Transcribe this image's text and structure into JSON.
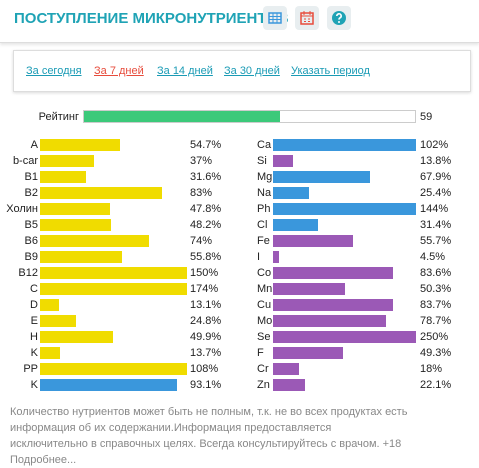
{
  "header": {
    "title": "ПОСТУПЛЕНИЕ МИКРОНУТРИЕНТОВ"
  },
  "tabs": [
    "За сегодня",
    "За 7 дней",
    "За 14 дней",
    "За 30 дней",
    "Указать период"
  ],
  "rating": {
    "label": "Рейтинг",
    "value": 59,
    "color": "#3cc97a"
  },
  "left": [
    {
      "name": "A",
      "value": 54.7,
      "label": "54.7%",
      "color": "#f0dc00"
    },
    {
      "name": "b-car",
      "value": 37,
      "label": "37%",
      "color": "#f0dc00"
    },
    {
      "name": "B1",
      "value": 31.6,
      "label": "31.6%",
      "color": "#f0dc00"
    },
    {
      "name": "B2",
      "value": 83,
      "label": "83%",
      "color": "#f0dc00"
    },
    {
      "name": "Холин",
      "value": 47.8,
      "label": "47.8%",
      "color": "#f0dc00"
    },
    {
      "name": "B5",
      "value": 48.2,
      "label": "48.2%",
      "color": "#f0dc00"
    },
    {
      "name": "B6",
      "value": 74,
      "label": "74%",
      "color": "#f0dc00"
    },
    {
      "name": "B9",
      "value": 55.8,
      "label": "55.8%",
      "color": "#f0dc00"
    },
    {
      "name": "B12",
      "value": 150,
      "label": "150%",
      "color": "#f0dc00"
    },
    {
      "name": "C",
      "value": 174,
      "label": "174%",
      "color": "#f0dc00"
    },
    {
      "name": "D",
      "value": 13.1,
      "label": "13.1%",
      "color": "#f0dc00"
    },
    {
      "name": "E",
      "value": 24.8,
      "label": "24.8%",
      "color": "#f0dc00"
    },
    {
      "name": "H",
      "value": 49.9,
      "label": "49.9%",
      "color": "#f0dc00"
    },
    {
      "name": "K",
      "value": 13.7,
      "label": "13.7%",
      "color": "#f0dc00"
    },
    {
      "name": "PP",
      "value": 108,
      "label": "108%",
      "color": "#f0dc00"
    },
    {
      "name": "K",
      "value": 93.1,
      "label": "93.1%",
      "color": "#3a97dc"
    }
  ],
  "right": [
    {
      "name": "Ca",
      "value": 102,
      "label": "102%",
      "color": "#3a97dc"
    },
    {
      "name": "Si",
      "value": 13.8,
      "label": "13.8%",
      "color": "#9b59b6"
    },
    {
      "name": "Mg",
      "value": 67.9,
      "label": "67.9%",
      "color": "#3a97dc"
    },
    {
      "name": "Na",
      "value": 25.4,
      "label": "25.4%",
      "color": "#3a97dc"
    },
    {
      "name": "Ph",
      "value": 144,
      "label": "144%",
      "color": "#3a97dc"
    },
    {
      "name": "Cl",
      "value": 31.4,
      "label": "31.4%",
      "color": "#3a97dc"
    },
    {
      "name": "Fe",
      "value": 55.7,
      "label": "55.7%",
      "color": "#9b59b6"
    },
    {
      "name": "I",
      "value": 4.5,
      "label": "4.5%",
      "color": "#9b59b6"
    },
    {
      "name": "Co",
      "value": 83.6,
      "label": "83.6%",
      "color": "#9b59b6"
    },
    {
      "name": "Mn",
      "value": 50.3,
      "label": "50.3%",
      "color": "#9b59b6"
    },
    {
      "name": "Cu",
      "value": 83.7,
      "label": "83.7%",
      "color": "#9b59b6"
    },
    {
      "name": "Mo",
      "value": 78.7,
      "label": "78.7%",
      "color": "#9b59b6"
    },
    {
      "name": "Se",
      "value": 250,
      "label": "250%",
      "color": "#9b59b6"
    },
    {
      "name": "F",
      "value": 49.3,
      "label": "49.3%",
      "color": "#9b59b6"
    },
    {
      "name": "Cr",
      "value": 18,
      "label": "18%",
      "color": "#9b59b6"
    },
    {
      "name": "Zn",
      "value": 22.1,
      "label": "22.1%",
      "color": "#9b59b6"
    }
  ],
  "footnote": "Количество нутриентов может быть не полным, т.к. не во всех продуктах есть информация об их содержании.Информация предоставляется исключительно в справочных целях. Всегда консультируйтесь с врачом. +18 Подробнее..."
}
